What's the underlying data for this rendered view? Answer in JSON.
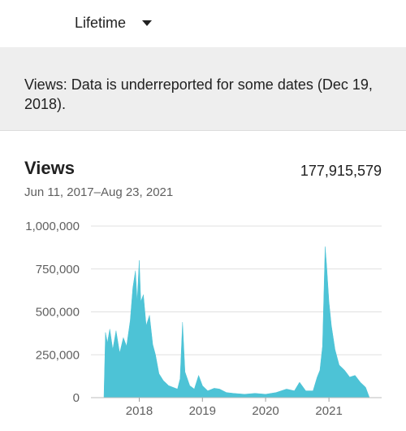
{
  "filter": {
    "label": "Lifetime"
  },
  "notice": {
    "text": "Views: Data is underreported for some dates (Dec 19, 2018)."
  },
  "card": {
    "title": "Views",
    "total": "177,915,579",
    "date_range": "Jun 11, 2017–Aug 23, 2021"
  },
  "colors": {
    "area": "#4dc3d6",
    "grid": "#e0e0e0",
    "notice_bg": "#eeeeee"
  },
  "icons": {
    "dropdown": "caret-down-icon"
  },
  "chart_data": {
    "type": "area",
    "ylabel": "",
    "xlabel": "",
    "ylim": [
      0,
      1000000
    ],
    "yticks": [
      0,
      250000,
      500000,
      750000,
      1000000
    ],
    "ytick_labels": [
      "0",
      "250,000",
      "500,000",
      "750,000",
      "1,000,000"
    ],
    "xticks": [
      "2018-01-01",
      "2019-01-01",
      "2020-01-01",
      "2021-01-01"
    ],
    "xtick_labels": [
      "2018",
      "2019",
      "2020",
      "2021"
    ],
    "x_range": [
      "2017-06-11",
      "2021-08-23"
    ],
    "series": [
      {
        "points": [
          [
            "2017-06-11",
            0
          ],
          [
            "2017-06-15",
            180000
          ],
          [
            "2017-06-20",
            380000
          ],
          [
            "2017-07-01",
            320000
          ],
          [
            "2017-07-15",
            400000
          ],
          [
            "2017-08-01",
            280000
          ],
          [
            "2017-08-20",
            390000
          ],
          [
            "2017-09-10",
            260000
          ],
          [
            "2017-10-01",
            350000
          ],
          [
            "2017-10-20",
            300000
          ],
          [
            "2017-11-10",
            450000
          ],
          [
            "2017-11-25",
            640000
          ],
          [
            "2017-12-10",
            740000
          ],
          [
            "2017-12-20",
            560000
          ],
          [
            "2018-01-01",
            800000
          ],
          [
            "2018-01-10",
            560000
          ],
          [
            "2018-01-25",
            600000
          ],
          [
            "2018-02-10",
            420000
          ],
          [
            "2018-03-01",
            480000
          ],
          [
            "2018-03-20",
            310000
          ],
          [
            "2018-04-05",
            250000
          ],
          [
            "2018-04-25",
            140000
          ],
          [
            "2018-05-20",
            100000
          ],
          [
            "2018-06-20",
            70000
          ],
          [
            "2018-07-15",
            60000
          ],
          [
            "2018-08-10",
            50000
          ],
          [
            "2018-08-25",
            110000
          ],
          [
            "2018-09-08",
            440000
          ],
          [
            "2018-09-22",
            150000
          ],
          [
            "2018-10-20",
            70000
          ],
          [
            "2018-11-15",
            50000
          ],
          [
            "2018-12-10",
            130000
          ],
          [
            "2019-01-01",
            70000
          ],
          [
            "2019-02-01",
            40000
          ],
          [
            "2019-03-10",
            55000
          ],
          [
            "2019-04-10",
            50000
          ],
          [
            "2019-05-20",
            30000
          ],
          [
            "2019-07-01",
            25000
          ],
          [
            "2019-09-01",
            20000
          ],
          [
            "2019-11-01",
            25000
          ],
          [
            "2020-01-01",
            20000
          ],
          [
            "2020-03-01",
            30000
          ],
          [
            "2020-05-01",
            50000
          ],
          [
            "2020-06-15",
            40000
          ],
          [
            "2020-07-15",
            90000
          ],
          [
            "2020-08-20",
            40000
          ],
          [
            "2020-10-01",
            40000
          ],
          [
            "2020-10-25",
            120000
          ],
          [
            "2020-11-10",
            160000
          ],
          [
            "2020-11-25",
            300000
          ],
          [
            "2020-12-10",
            880000
          ],
          [
            "2020-12-18",
            780000
          ],
          [
            "2021-01-01",
            560000
          ],
          [
            "2021-01-15",
            420000
          ],
          [
            "2021-02-05",
            280000
          ],
          [
            "2021-03-01",
            190000
          ],
          [
            "2021-04-01",
            160000
          ],
          [
            "2021-05-01",
            120000
          ],
          [
            "2021-06-01",
            130000
          ],
          [
            "2021-07-01",
            90000
          ],
          [
            "2021-08-01",
            60000
          ],
          [
            "2021-08-23",
            0
          ]
        ]
      }
    ]
  }
}
